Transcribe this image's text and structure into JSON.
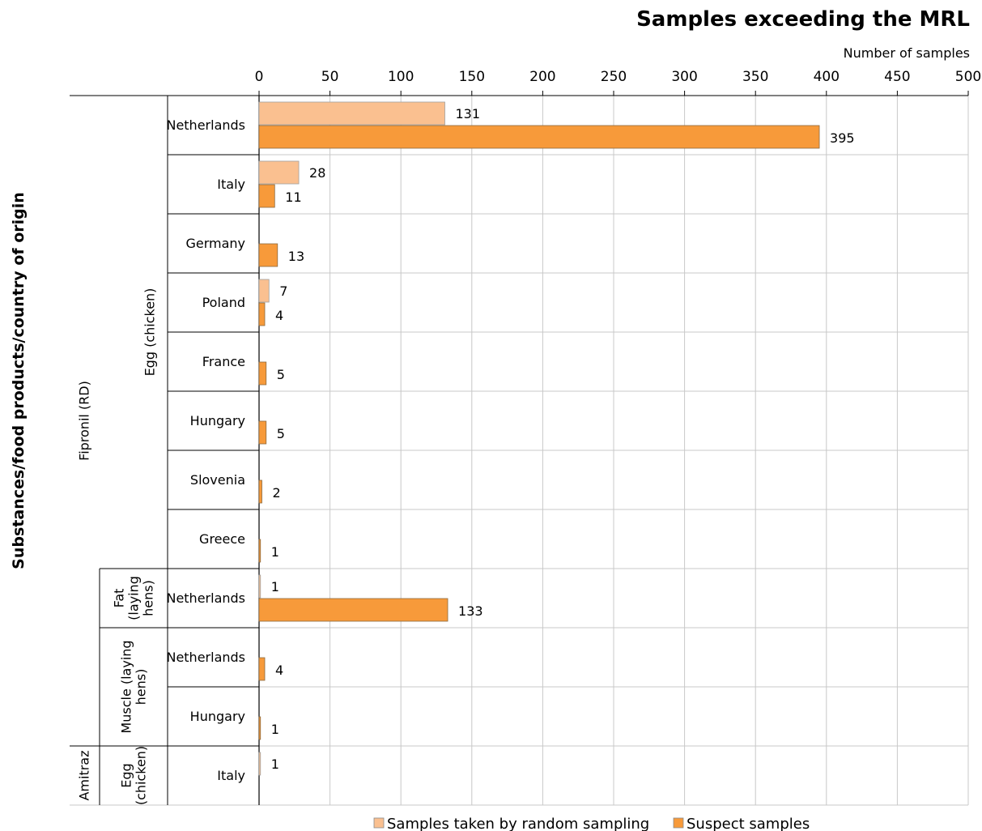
{
  "chart_data": {
    "type": "bar",
    "orientation": "horizontal",
    "title": "Samples exceeding the MRL",
    "xlabel": "Number of samples",
    "ylabel": "Substances/food products/country of origin",
    "xlim": [
      0,
      500
    ],
    "xticks": [
      0,
      50,
      100,
      150,
      200,
      250,
      300,
      350,
      400,
      450,
      500
    ],
    "grid": true,
    "legend_position": "bottom",
    "series": [
      {
        "name": "Samples taken by random sampling",
        "color": "#FAC090"
      },
      {
        "name": "Suspect samples",
        "color": "#F79A3A"
      }
    ],
    "substances": [
      {
        "name": "Fipronil (RD)",
        "start": 0,
        "end": 10
      },
      {
        "name": "Amitraz",
        "start": 11,
        "end": 11
      }
    ],
    "products": [
      {
        "name": "Egg (chicken)",
        "start": 0,
        "end": 7
      },
      {
        "name": "Fat (laying hens)",
        "lines": [
          "Fat",
          "(laying",
          "hens)"
        ],
        "start": 8,
        "end": 8
      },
      {
        "name": "Muscle (laying hens)",
        "lines": [
          "Muscle (laying",
          "hens)"
        ],
        "start": 9,
        "end": 10
      },
      {
        "name": "Egg (chicken)",
        "lines": [
          "Egg",
          "(chicken)"
        ],
        "start": 11,
        "end": 11
      }
    ],
    "rows": [
      {
        "country": "Netherlands",
        "random": 131,
        "suspect": 395
      },
      {
        "country": "Italy",
        "random": 28,
        "suspect": 11
      },
      {
        "country": "Germany",
        "random": null,
        "suspect": 13
      },
      {
        "country": "Poland",
        "random": 7,
        "suspect": 4
      },
      {
        "country": "France",
        "random": null,
        "suspect": 5
      },
      {
        "country": "Hungary",
        "random": null,
        "suspect": 5
      },
      {
        "country": "Slovenia",
        "random": null,
        "suspect": 2
      },
      {
        "country": "Greece",
        "random": null,
        "suspect": 1
      },
      {
        "country": "Netherlands",
        "random": 1,
        "suspect": 133
      },
      {
        "country": "Netherlands",
        "random": null,
        "suspect": 4
      },
      {
        "country": "Hungary",
        "random": null,
        "suspect": 1
      },
      {
        "country": "Italy",
        "random": 1,
        "suspect": null
      }
    ]
  }
}
